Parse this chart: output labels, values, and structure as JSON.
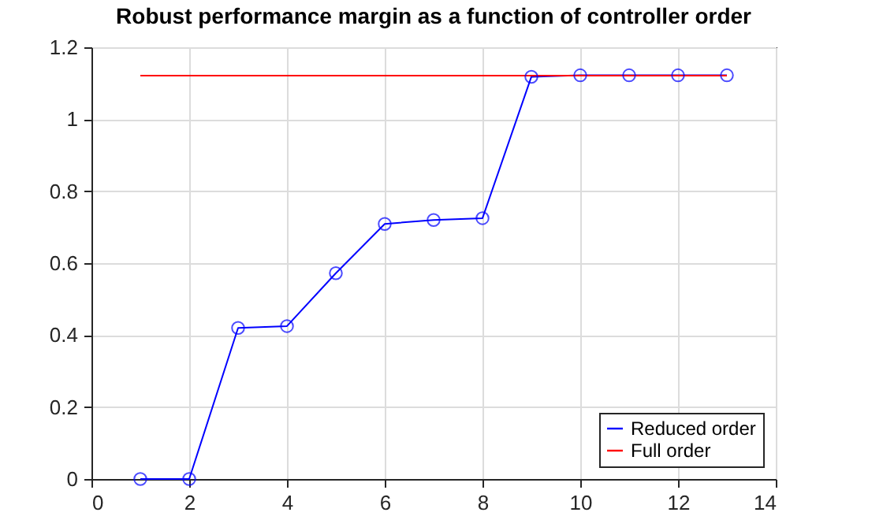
{
  "chart_data": {
    "type": "line",
    "title": "Robust performance margin as a function of controller order",
    "xlim": [
      0,
      14
    ],
    "xticks": [
      0,
      2,
      4,
      6,
      8,
      10,
      12,
      14
    ],
    "ylim": [
      0,
      1.2
    ],
    "yticks": [
      0,
      0.2,
      0.4,
      0.6,
      0.8,
      1,
      1.2
    ],
    "grid": true,
    "legend": "bottom right",
    "series": [
      {
        "name": "Reduced order",
        "color": "#0000ff",
        "marker": "circle",
        "x": [
          1,
          2,
          3,
          4,
          5,
          6,
          7,
          8,
          9,
          10,
          11,
          12,
          13
        ],
        "values": [
          0,
          0,
          0.42,
          0.425,
          0.572,
          0.709,
          0.72,
          0.725,
          1.118,
          1.122,
          1.122,
          1.122,
          1.122
        ]
      },
      {
        "name": "Full order",
        "color": "#ff0000",
        "marker": "none",
        "x": [
          1,
          13
        ],
        "values": [
          1.121,
          1.121
        ]
      }
    ]
  }
}
